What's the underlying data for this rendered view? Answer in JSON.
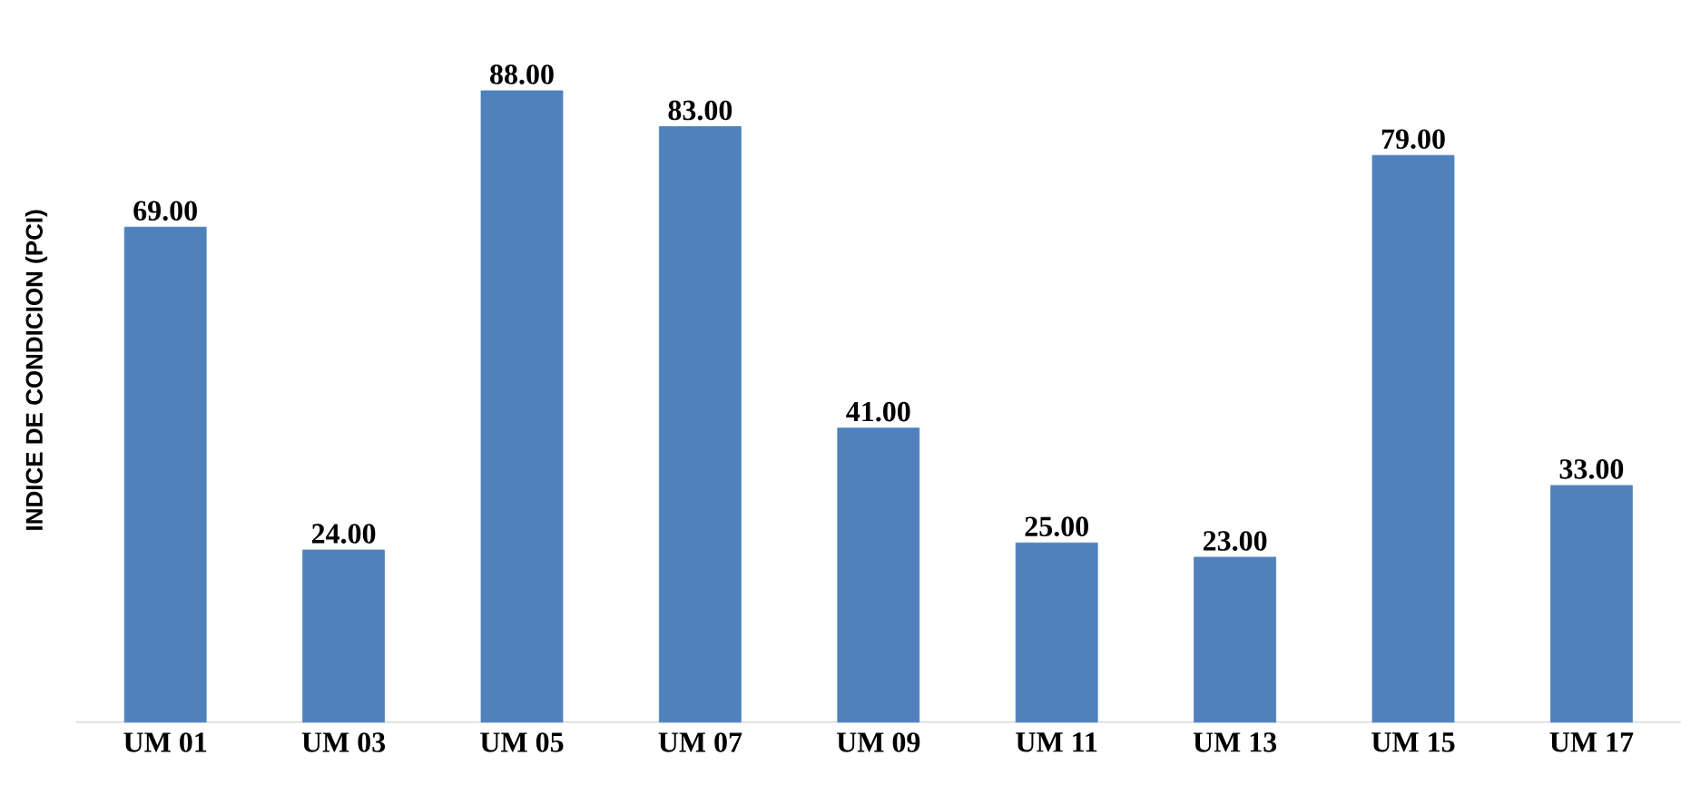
{
  "chart_data": {
    "type": "bar",
    "ylabel": "INDICE DE CONDICION (PCI)",
    "categories": [
      "UM 01",
      "UM 03",
      "UM 05",
      "UM 07",
      "UM 09",
      "UM 11",
      "UM 13",
      "UM 15",
      "UM 17"
    ],
    "values": [
      69,
      24,
      88,
      83,
      41,
      25,
      23,
      79,
      33
    ],
    "value_labels": [
      "69.00",
      "24.00",
      "88.00",
      "83.00",
      "41.00",
      "25.00",
      "23.00",
      "79.00",
      "33.00"
    ],
    "color": "#4f81bd"
  }
}
